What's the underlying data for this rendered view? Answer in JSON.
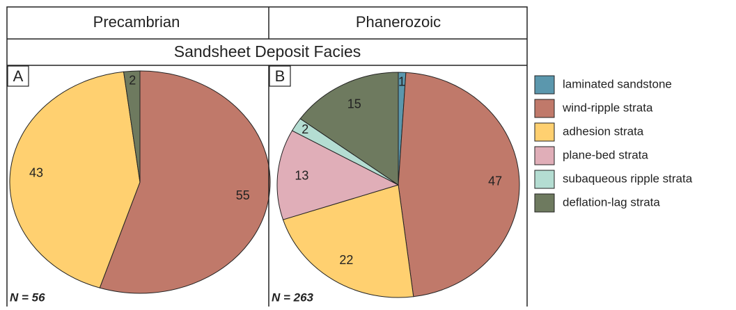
{
  "title": "Sandsheet Deposit Facies",
  "legend": {
    "categories": [
      "laminated sandstone",
      "wind-ripple strata",
      "adhesion strata",
      "plane-bed strata",
      "subaqueous ripple strata",
      "deflation-lag strata"
    ],
    "colors": [
      "#5b97ad",
      "#c0796a",
      "#ffd070",
      "#e0aeb8",
      "#b4ddd2",
      "#6e7a5f"
    ]
  },
  "chart_data": [
    {
      "type": "pie",
      "header": "Precambrian",
      "panel": "A",
      "note": "N = 56",
      "values": [
        null,
        55,
        43,
        null,
        null,
        2
      ]
    },
    {
      "type": "pie",
      "header": "Phanerozoic",
      "panel": "B",
      "note": "N = 263",
      "values": [
        1,
        47,
        22,
        13,
        2,
        15
      ]
    }
  ]
}
